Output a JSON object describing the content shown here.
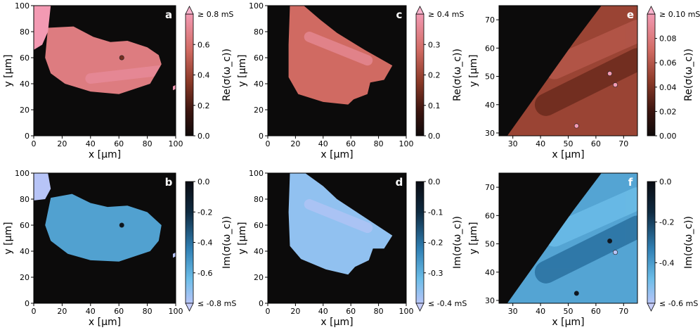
{
  "chart_data": [
    {
      "type": "heatmap",
      "panel_label": "a",
      "quantity": "real",
      "xlabel": "x [μm]",
      "ylabel": "y [μm]",
      "xlim": [
        0,
        100
      ],
      "ylim": [
        0,
        100
      ],
      "xticks": [
        "0",
        "20",
        "40",
        "60",
        "80",
        "100"
      ],
      "yticks": [
        "0",
        "20",
        "40",
        "60",
        "80",
        "100"
      ],
      "colorbar": {
        "label": "Re(σ(ω_c))",
        "min": 0.0,
        "max": 0.8,
        "ticks": [
          "0.0",
          "0.2",
          "0.4",
          "0.6"
        ],
        "extend_label": "≥ 0.8 mS",
        "extend": "max"
      },
      "flake": [
        [
          10,
          83
        ],
        [
          28,
          84
        ],
        [
          42,
          76
        ],
        [
          54,
          72
        ],
        [
          66,
          73
        ],
        [
          80,
          68
        ],
        [
          88,
          62
        ],
        [
          90,
          55
        ],
        [
          82,
          40
        ],
        [
          60,
          32
        ],
        [
          40,
          34
        ],
        [
          22,
          40
        ],
        [
          12,
          48
        ],
        [
          8,
          60
        ]
      ],
      "small_flake": [
        [
          0,
          100
        ],
        [
          12,
          100
        ],
        [
          10,
          80
        ],
        [
          6,
          70
        ],
        [
          0,
          66
        ]
      ],
      "small_flake2": [
        [
          98,
          38
        ],
        [
          100,
          39
        ],
        [
          100,
          36
        ],
        [
          98,
          35
        ]
      ],
      "flake_level": 0.65,
      "small_flake_level": 0.8,
      "spots": [
        {
          "x": 62,
          "y": 60,
          "v": 0.3
        }
      ],
      "bands": [
        {
          "x1": 40,
          "y1": 44,
          "x2": 88,
          "y2": 50,
          "v": 0.72
        }
      ]
    },
    {
      "type": "heatmap",
      "panel_label": "b",
      "quantity": "imag",
      "xlabel": "x [μm]",
      "ylabel": "y [μm]",
      "xlim": [
        0,
        100
      ],
      "ylim": [
        0,
        100
      ],
      "xticks": [
        "0",
        "20",
        "40",
        "60",
        "80",
        "100"
      ],
      "yticks": [
        "0",
        "20",
        "40",
        "60",
        "80",
        "100"
      ],
      "colorbar": {
        "label": "Im(σ(ω_c))",
        "min": -0.8,
        "max": 0.0,
        "ticks": [
          "0.0",
          "-0.2",
          "-0.4",
          "-0.6"
        ],
        "extend_label": "≤ -0.8 mS",
        "extend": "min"
      },
      "flake": [
        [
          12,
          81
        ],
        [
          27,
          84
        ],
        [
          40,
          77
        ],
        [
          52,
          74
        ],
        [
          66,
          75
        ],
        [
          80,
          70
        ],
        [
          90,
          60
        ],
        [
          88,
          48
        ],
        [
          82,
          40
        ],
        [
          60,
          32
        ],
        [
          40,
          33
        ],
        [
          24,
          38
        ],
        [
          12,
          48
        ],
        [
          8,
          60
        ]
      ],
      "small_flake": [
        [
          0,
          100
        ],
        [
          10,
          100
        ],
        [
          12,
          88
        ],
        [
          8,
          80
        ],
        [
          0,
          79
        ]
      ],
      "small_flake2": [
        [
          98,
          38
        ],
        [
          100,
          39
        ],
        [
          100,
          36
        ],
        [
          98,
          35
        ]
      ],
      "flake_level": -0.55,
      "small_flake_level": -0.8,
      "spots": [
        {
          "x": 62,
          "y": 60,
          "v": -0.05
        }
      ],
      "bands": []
    },
    {
      "type": "heatmap",
      "panel_label": "c",
      "quantity": "real",
      "xlabel": "x [μm]",
      "ylabel": "y [μm]",
      "xlim": [
        0,
        100
      ],
      "ylim": [
        0,
        100
      ],
      "xticks": [
        "0",
        "20",
        "40",
        "60",
        "80",
        "100"
      ],
      "yticks": [
        "0",
        "20",
        "40",
        "60",
        "80",
        "100"
      ],
      "colorbar": {
        "label": "Re(σ(ω_c))",
        "min": 0.0,
        "max": 0.4,
        "ticks": [
          "0.0",
          "0.1",
          "0.2",
          "0.3"
        ],
        "extend_label": "≥ 0.4 mS",
        "extend": "max"
      },
      "flake": [
        [
          16,
          100
        ],
        [
          26,
          100
        ],
        [
          38,
          89
        ],
        [
          50,
          79
        ],
        [
          70,
          66
        ],
        [
          90,
          54
        ],
        [
          84,
          43
        ],
        [
          74,
          41
        ],
        [
          72,
          32
        ],
        [
          62,
          28
        ],
        [
          58,
          24
        ],
        [
          40,
          26
        ],
        [
          22,
          32
        ],
        [
          15,
          45
        ],
        [
          15,
          70
        ]
      ],
      "small_flake": [],
      "small_flake2": [],
      "flake_level": 0.28,
      "small_flake_level": 0.28,
      "spots": [],
      "bands": [
        {
          "x1": 30,
          "y1": 76,
          "x2": 72,
          "y2": 58,
          "v": 0.35
        }
      ]
    },
    {
      "type": "heatmap",
      "panel_label": "d",
      "quantity": "imag",
      "xlabel": "x [μm]",
      "ylabel": "y [μm]",
      "xlim": [
        0,
        100
      ],
      "ylim": [
        0,
        100
      ],
      "xticks": [
        "0",
        "20",
        "40",
        "60",
        "80",
        "100"
      ],
      "yticks": [
        "0",
        "20",
        "40",
        "60",
        "80",
        "100"
      ],
      "colorbar": {
        "label": "Im(σ(ω_c))",
        "min": -0.4,
        "max": 0.0,
        "ticks": [
          "0.0",
          "-0.1",
          "-0.2",
          "-0.3"
        ],
        "extend_label": "≤ -0.4 mS",
        "extend": "min"
      },
      "flake": [
        [
          16,
          100
        ],
        [
          27,
          100
        ],
        [
          40,
          90
        ],
        [
          50,
          80
        ],
        [
          70,
          66
        ],
        [
          90,
          52
        ],
        [
          84,
          42
        ],
        [
          76,
          42
        ],
        [
          73,
          33
        ],
        [
          63,
          28
        ],
        [
          58,
          22
        ],
        [
          42,
          26
        ],
        [
          24,
          34
        ],
        [
          16,
          44
        ],
        [
          15,
          70
        ]
      ],
      "small_flake": [],
      "small_flake2": [],
      "flake_level": -0.36,
      "small_flake_level": -0.36,
      "spots": [],
      "bands": [
        {
          "x1": 30,
          "y1": 76,
          "x2": 72,
          "y2": 58,
          "v": -0.39
        }
      ]
    },
    {
      "type": "heatmap",
      "panel_label": "e",
      "quantity": "real",
      "xlabel": "x [μm]",
      "ylabel": "y [μm]",
      "xlim": [
        25,
        75
      ],
      "ylim": [
        29,
        75
      ],
      "xticks": [
        "30",
        "40",
        "50",
        "60",
        "70"
      ],
      "yticks": [
        "30",
        "40",
        "50",
        "60",
        "70"
      ],
      "colorbar": {
        "label": "Re(σ(ω_c))",
        "min": 0.0,
        "max": 0.1,
        "ticks": [
          "0.00",
          "0.02",
          "0.04",
          "0.06",
          "0.08"
        ],
        "extend_label": "≥ 0.10 mS",
        "extend": "max"
      },
      "flake": [
        [
          28,
          29
        ],
        [
          52,
          62
        ],
        [
          62,
          75
        ],
        [
          75,
          75
        ],
        [
          75,
          29
        ]
      ],
      "small_flake": [],
      "small_flake2": [],
      "flake_level": 0.05,
      "small_flake_level": 0.05,
      "spots": [
        {
          "x": 65,
          "y": 51,
          "v": 0.1
        },
        {
          "x": 67,
          "y": 47,
          "v": 0.1
        },
        {
          "x": 53,
          "y": 32.5,
          "v": 0.1
        }
      ],
      "bands": [
        {
          "x1": 42,
          "y1": 40,
          "x2": 75,
          "y2": 56,
          "v": 0.035
        },
        {
          "x1": 45,
          "y1": 53,
          "x2": 75,
          "y2": 66,
          "v": 0.06
        }
      ]
    },
    {
      "type": "heatmap",
      "panel_label": "f",
      "quantity": "imag",
      "xlabel": "x [μm]",
      "ylabel": "y [μm]",
      "xlim": [
        25,
        75
      ],
      "ylim": [
        29,
        75
      ],
      "xticks": [
        "30",
        "40",
        "50",
        "60",
        "70"
      ],
      "yticks": [
        "30",
        "40",
        "50",
        "60",
        "70"
      ],
      "colorbar": {
        "label": "Im(σ(ω_c))",
        "min": -0.6,
        "max": 0.0,
        "ticks": [
          "0.0",
          "-0.2",
          "-0.4"
        ],
        "extend_label": "≤ -0.6 mS",
        "extend": "min"
      },
      "flake": [
        [
          28,
          29
        ],
        [
          52,
          62
        ],
        [
          62,
          75
        ],
        [
          75,
          75
        ],
        [
          75,
          29
        ]
      ],
      "small_flake": [],
      "small_flake2": [],
      "flake_level": -0.42,
      "small_flake_level": -0.42,
      "spots": [
        {
          "x": 65,
          "y": 51,
          "v": -0.05
        },
        {
          "x": 67,
          "y": 47,
          "v": -0.6
        },
        {
          "x": 53,
          "y": 32.5,
          "v": -0.05
        }
      ],
      "bands": [
        {
          "x1": 42,
          "y1": 40,
          "x2": 75,
          "y2": 56,
          "v": -0.3
        },
        {
          "x1": 45,
          "y1": 53,
          "x2": 75,
          "y2": 66,
          "v": -0.48
        }
      ]
    }
  ]
}
